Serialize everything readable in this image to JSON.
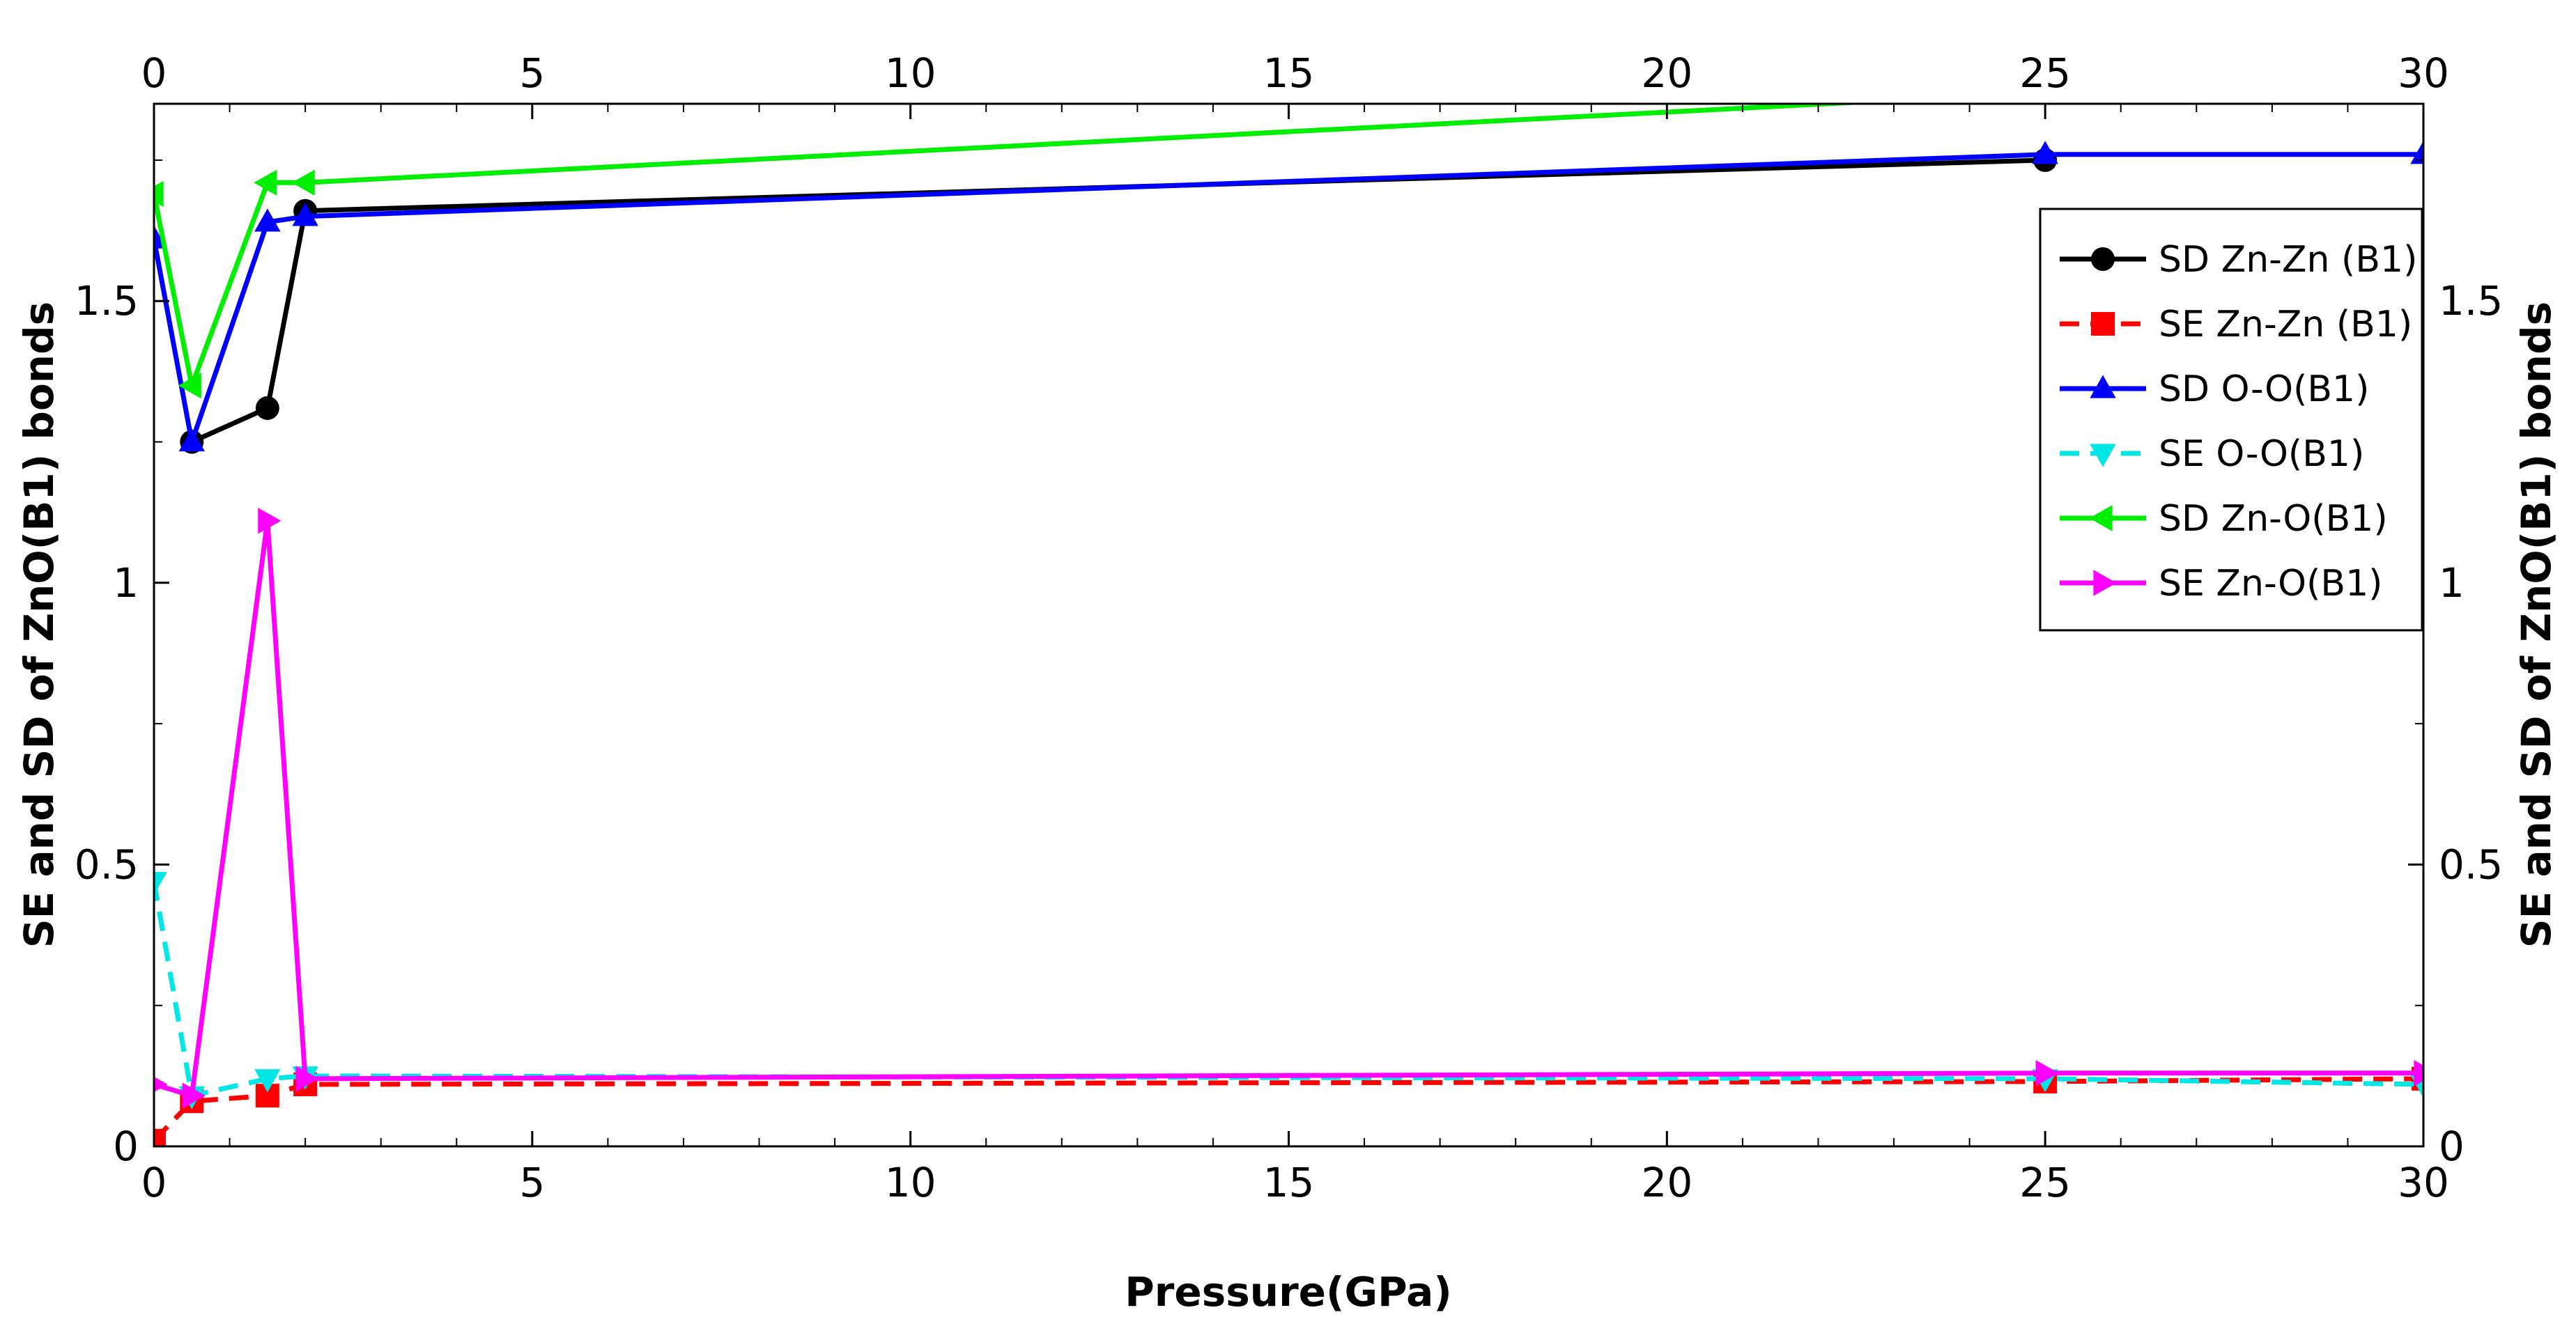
{
  "chart_data": {
    "type": "line",
    "xlabel": "Pressure(GPa)",
    "ylabel": "SE and SD of ZnO(B1) bonds",
    "xlim": [
      0,
      30
    ],
    "ylim": [
      0,
      1.85
    ],
    "x_ticks": [
      "0",
      "5",
      "10",
      "15",
      "20",
      "25",
      "30"
    ],
    "y_ticks": [
      "0",
      "0.5",
      "1",
      "1.5"
    ],
    "y_tick_values": [
      0,
      0.5,
      1,
      1.5
    ],
    "grid": false,
    "legend_position": "top-right",
    "series": [
      {
        "name": "SD Zn-Zn (B1)",
        "color": "#000000",
        "dash": "solid",
        "marker": "circle",
        "x": [
          0.5,
          1.5,
          2,
          25
        ],
        "y": [
          1.25,
          1.31,
          1.66,
          1.75
        ]
      },
      {
        "name": "SE Zn-Zn (B1)",
        "color": "#ff0000",
        "dash": "dashed",
        "marker": "square",
        "x": [
          0,
          0.5,
          1.5,
          2,
          25,
          30
        ],
        "y": [
          0.01,
          0.08,
          0.09,
          0.11,
          0.115,
          0.12
        ]
      },
      {
        "name": "SD O-O(B1)",
        "color": "#0000ff",
        "dash": "solid",
        "marker": "triangle-up",
        "x": [
          0,
          0.5,
          1.5,
          2,
          25,
          30
        ],
        "y": [
          1.61,
          1.25,
          1.64,
          1.65,
          1.76,
          1.76
        ]
      },
      {
        "name": "SE O-O(B1)",
        "color": "#00e5e5",
        "dash": "dashed",
        "marker": "triangle-down",
        "x": [
          0,
          0.5,
          1.5,
          2,
          25,
          30
        ],
        "y": [
          0.47,
          0.09,
          0.12,
          0.125,
          0.12,
          0.11
        ]
      },
      {
        "name": "SD Zn-O(B1)",
        "color": "#00ee00",
        "dash": "solid",
        "marker": "triangle-left",
        "x": [
          0,
          0.5,
          1.5,
          2,
          25
        ],
        "y": [
          1.69,
          1.35,
          1.71,
          1.71,
          1.87
        ]
      },
      {
        "name": "SE Zn-O(B1)",
        "color": "#ff00ff",
        "dash": "solid",
        "marker": "triangle-right",
        "x": [
          0,
          0.5,
          1.5,
          2,
          25,
          30
        ],
        "y": [
          0.11,
          0.09,
          1.11,
          0.12,
          0.13,
          0.13
        ]
      }
    ]
  }
}
